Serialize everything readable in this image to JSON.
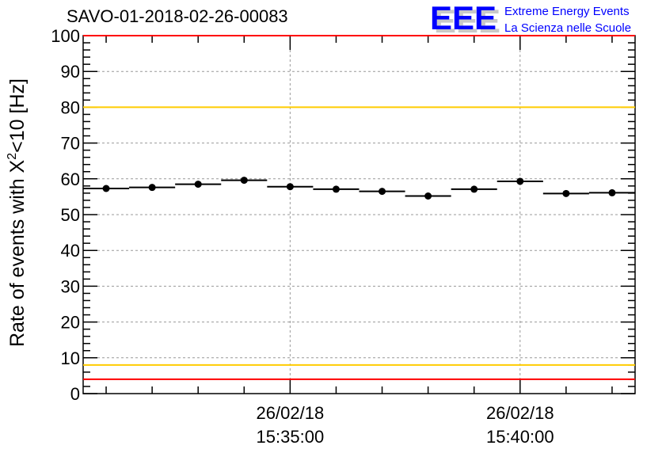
{
  "chart_data": {
    "type": "scatter",
    "title": "SAVO-01-2018-02-26-00083",
    "ylabel": "Rate of events with X²<10 [Hz]",
    "ylabel_parts": {
      "pre": "Rate of events with X",
      "sup": "2",
      "post": "<10 [Hz]"
    },
    "xlabel": "",
    "ylim": [
      0,
      100
    ],
    "yticks": [
      0,
      10,
      20,
      30,
      40,
      50,
      60,
      70,
      80,
      90,
      100
    ],
    "xlim_minutes_from_1530": [
      0.5,
      12.5
    ],
    "xticks": [
      {
        "minute": 5,
        "date": "26/02/18",
        "time": "15:35:00"
      },
      {
        "minute": 10,
        "date": "26/02/18",
        "time": "15:40:00"
      }
    ],
    "bin_width_minutes": 1,
    "x_minutes_from_1530": [
      1,
      2,
      3,
      4,
      5,
      6,
      7,
      8,
      9,
      10,
      11,
      12
    ],
    "values": [
      57.3,
      57.6,
      58.5,
      59.6,
      57.8,
      57.1,
      56.5,
      55.2,
      57.1,
      59.3,
      55.9,
      56.1
    ],
    "reference_lines": [
      {
        "value": 100,
        "color": "#ff0000"
      },
      {
        "value": 80,
        "color": "#ffcc00"
      },
      {
        "value": 8,
        "color": "#ffcc00"
      },
      {
        "value": 4,
        "color": "#ff0000"
      }
    ],
    "grid": true
  },
  "logo": {
    "mark": "EEE",
    "line1": "Extreme Energy Events",
    "line2": "La Scienza nelle Scuole",
    "color": "#0000ff"
  }
}
